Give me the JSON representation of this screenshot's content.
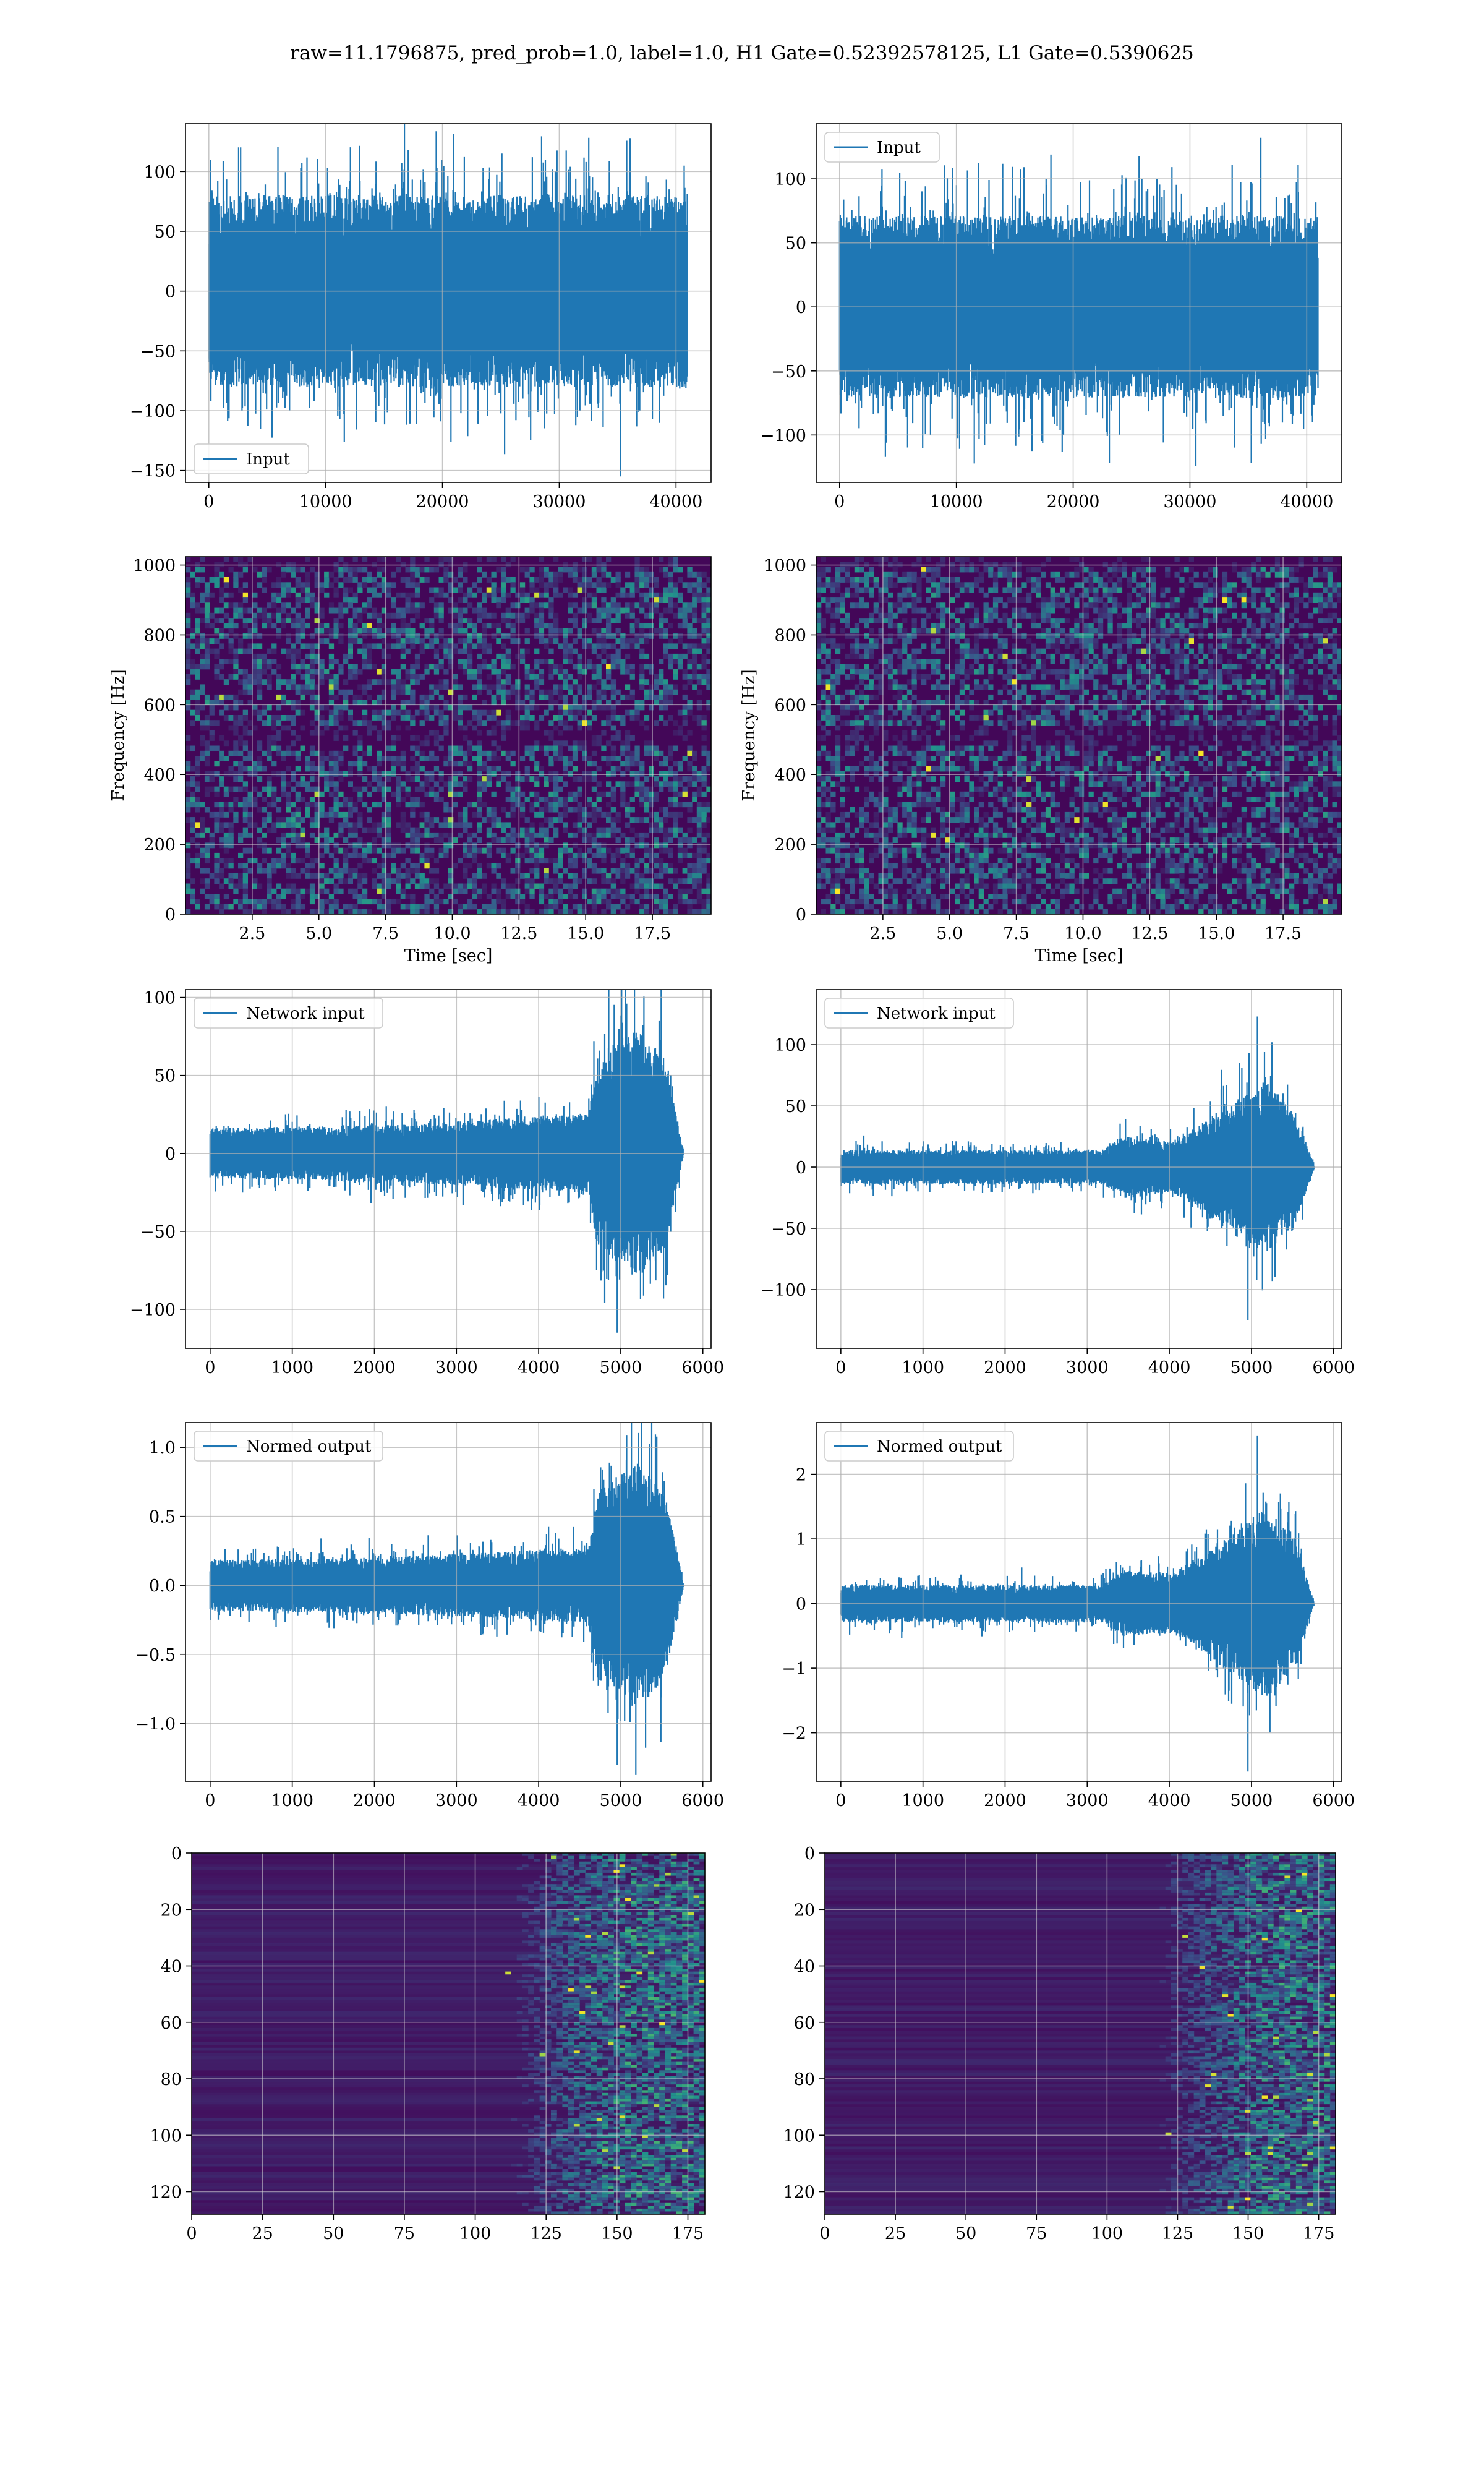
{
  "figure": {
    "suptitle": "raw=11.1796875, pred_prob=1.0, label=1.0, H1 Gate=0.52392578125, L1 Gate=0.5390625",
    "colors": {
      "line": "#1f77b4",
      "grid": "#b0b0b0",
      "cmap_low": "#440154",
      "cmap_high": "#fde725"
    }
  },
  "chart_data": [
    {
      "id": "h1-input",
      "type": "line",
      "legend": "Input",
      "legend_position": "lower left",
      "xlim": [
        -2000,
        43000
      ],
      "ylim": [
        -160,
        140
      ],
      "xticks": [
        0,
        10000,
        20000,
        30000,
        40000
      ],
      "yticks": [
        -150,
        -100,
        -50,
        0,
        50,
        100
      ],
      "xticklabels": [
        "0",
        "10000",
        "20000",
        "30000",
        "40000"
      ],
      "yticklabels": [
        "−150",
        "−100",
        "−50",
        "0",
        "50",
        "100"
      ],
      "signal": {
        "n": 40960,
        "envelope": [
          [
            0,
            70
          ],
          [
            0.25,
            70
          ],
          [
            0.5,
            70
          ],
          [
            0.75,
            70
          ],
          [
            1,
            70
          ]
        ],
        "peak": 128,
        "min": -155
      },
      "grid": true
    },
    {
      "id": "l1-input",
      "type": "line",
      "legend": "Input",
      "legend_position": "upper left",
      "xlim": [
        -2000,
        43000
      ],
      "ylim": [
        -137,
        143
      ],
      "xticks": [
        0,
        10000,
        20000,
        30000,
        40000
      ],
      "yticks": [
        -100,
        -50,
        0,
        50,
        100
      ],
      "xticklabels": [
        "0",
        "10000",
        "20000",
        "30000",
        "40000"
      ],
      "yticklabels": [
        "−100",
        "−50",
        "0",
        "50",
        "100"
      ],
      "signal": {
        "n": 40960,
        "envelope": [
          [
            0,
            62
          ],
          [
            0.25,
            62
          ],
          [
            0.5,
            62
          ],
          [
            0.75,
            62
          ],
          [
            1,
            62
          ]
        ],
        "peak": 132,
        "min": -122
      },
      "grid": true
    },
    {
      "id": "h1-spectrogram",
      "type": "heatmap",
      "xlabel": "Time [sec]",
      "ylabel": "Frequency [Hz]",
      "xlim": [
        0,
        19.7
      ],
      "ylim": [
        0,
        1024
      ],
      "xticks": [
        2.5,
        5.0,
        7.5,
        10.0,
        12.5,
        15.0,
        17.5
      ],
      "yticks": [
        0,
        200,
        400,
        600,
        800,
        1000
      ],
      "xticklabels": [
        "2.5",
        "5.0",
        "7.5",
        "10.0",
        "12.5",
        "15.0",
        "17.5"
      ],
      "yticklabels": [
        "0",
        "200",
        "400",
        "600",
        "800",
        "1000"
      ],
      "grid": true,
      "colormap": "viridis"
    },
    {
      "id": "l1-spectrogram",
      "type": "heatmap",
      "xlabel": "Time [sec]",
      "ylabel": "Frequency [Hz]",
      "xlim": [
        0,
        19.7
      ],
      "ylim": [
        0,
        1024
      ],
      "xticks": [
        2.5,
        5.0,
        7.5,
        10.0,
        12.5,
        15.0,
        17.5
      ],
      "yticks": [
        0,
        200,
        400,
        600,
        800,
        1000
      ],
      "xticklabels": [
        "2.5",
        "5.0",
        "7.5",
        "10.0",
        "12.5",
        "15.0",
        "17.5"
      ],
      "yticklabels": [
        "0",
        "200",
        "400",
        "600",
        "800",
        "1000"
      ],
      "grid": true,
      "colormap": "viridis"
    },
    {
      "id": "h1-network-input",
      "type": "line",
      "legend": "Network input",
      "legend_position": "upper left",
      "xlim": [
        -300,
        6100
      ],
      "ylim": [
        -125,
        105
      ],
      "xticks": [
        0,
        1000,
        2000,
        3000,
        4000,
        5000,
        6000
      ],
      "yticks": [
        -100,
        -50,
        0,
        50,
        100
      ],
      "xticklabels": [
        "0",
        "1000",
        "2000",
        "3000",
        "4000",
        "5000",
        "6000"
      ],
      "yticklabels": [
        "−100",
        "−50",
        "0",
        "50",
        "100"
      ],
      "signal": {
        "n": 5760,
        "envelope": [
          [
            0,
            14
          ],
          [
            0.4,
            16
          ],
          [
            0.8,
            22
          ],
          [
            0.82,
            55
          ],
          [
            0.9,
            70
          ],
          [
            0.96,
            55
          ],
          [
            1,
            2
          ]
        ],
        "peak": 96,
        "min": -115
      },
      "grid": true
    },
    {
      "id": "l1-network-input",
      "type": "line",
      "legend": "Network input",
      "legend_position": "upper left",
      "xlim": [
        -300,
        6100
      ],
      "ylim": [
        -148,
        145
      ],
      "xticks": [
        0,
        1000,
        2000,
        3000,
        4000,
        5000,
        6000
      ],
      "yticks": [
        -100,
        -50,
        0,
        50,
        100
      ],
      "xticklabels": [
        "0",
        "1000",
        "2000",
        "3000",
        "4000",
        "5000",
        "6000"
      ],
      "yticklabels": [
        "−100",
        "−50",
        "0",
        "50",
        "100"
      ],
      "signal": {
        "n": 5760,
        "envelope": [
          [
            0,
            12
          ],
          [
            0.55,
            12
          ],
          [
            0.6,
            22
          ],
          [
            0.7,
            18
          ],
          [
            0.8,
            38
          ],
          [
            0.9,
            62
          ],
          [
            0.96,
            40
          ],
          [
            1,
            2
          ]
        ],
        "peak": 123,
        "min": -125
      },
      "grid": true
    },
    {
      "id": "h1-normed-output",
      "type": "line",
      "legend": "Normed output",
      "legend_position": "upper left",
      "xlim": [
        -300,
        6100
      ],
      "ylim": [
        -1.42,
        1.18
      ],
      "xticks": [
        0,
        1000,
        2000,
        3000,
        4000,
        5000,
        6000
      ],
      "yticks": [
        -1.0,
        -0.5,
        0.0,
        0.5,
        1.0
      ],
      "xticklabels": [
        "0",
        "1000",
        "2000",
        "3000",
        "4000",
        "5000",
        "6000"
      ],
      "yticklabels": [
        "−1.0",
        "−0.5",
        "0.0",
        "0.5",
        "1.0"
      ],
      "signal": {
        "n": 5760,
        "envelope": [
          [
            0,
            0.16
          ],
          [
            0.4,
            0.18
          ],
          [
            0.8,
            0.24
          ],
          [
            0.82,
            0.6
          ],
          [
            0.9,
            0.78
          ],
          [
            0.96,
            0.6
          ],
          [
            1,
            0.02
          ]
        ],
        "peak": 1.09,
        "min": -1.3
      },
      "grid": true
    },
    {
      "id": "l1-normed-output",
      "type": "line",
      "legend": "Normed output",
      "legend_position": "upper left",
      "xlim": [
        -300,
        6100
      ],
      "ylim": [
        -2.75,
        2.8
      ],
      "xticks": [
        0,
        1000,
        2000,
        3000,
        4000,
        5000,
        6000
      ],
      "yticks": [
        -2,
        -1,
        0,
        1,
        2
      ],
      "xticklabels": [
        "0",
        "1000",
        "2000",
        "3000",
        "4000",
        "5000",
        "6000"
      ],
      "yticklabels": [
        "−2",
        "−1",
        "0",
        "1",
        "2"
      ],
      "signal": {
        "n": 5760,
        "envelope": [
          [
            0,
            0.25
          ],
          [
            0.55,
            0.25
          ],
          [
            0.6,
            0.45
          ],
          [
            0.7,
            0.4
          ],
          [
            0.8,
            0.8
          ],
          [
            0.9,
            1.3
          ],
          [
            0.96,
            0.85
          ],
          [
            1,
            0.03
          ]
        ],
        "peak": 2.6,
        "min": -2.6
      },
      "grid": true
    },
    {
      "id": "h1-feature-map",
      "type": "heatmap",
      "xlim": [
        0,
        181
      ],
      "ylim": [
        128,
        0
      ],
      "xticks": [
        0,
        25,
        50,
        75,
        100,
        125,
        150,
        175
      ],
      "yticks": [
        0,
        20,
        40,
        60,
        80,
        100,
        120
      ],
      "xticklabels": [
        "0",
        "25",
        "50",
        "75",
        "100",
        "125",
        "150",
        "175"
      ],
      "yticklabels": [
        "0",
        "20",
        "40",
        "60",
        "80",
        "100",
        "120"
      ],
      "grid": true,
      "colormap": "viridis",
      "activity_onset": 120
    },
    {
      "id": "l1-feature-map",
      "type": "heatmap",
      "xlim": [
        0,
        181
      ],
      "ylim": [
        128,
        0
      ],
      "xticks": [
        0,
        25,
        50,
        75,
        100,
        125,
        150,
        175
      ],
      "yticks": [
        0,
        20,
        40,
        60,
        80,
        100,
        120
      ],
      "xticklabels": [
        "0",
        "25",
        "50",
        "75",
        "100",
        "125",
        "150",
        "175"
      ],
      "yticklabels": [
        "0",
        "20",
        "40",
        "60",
        "80",
        "100",
        "120"
      ],
      "grid": true,
      "colormap": "viridis",
      "activity_onset": 125
    }
  ]
}
